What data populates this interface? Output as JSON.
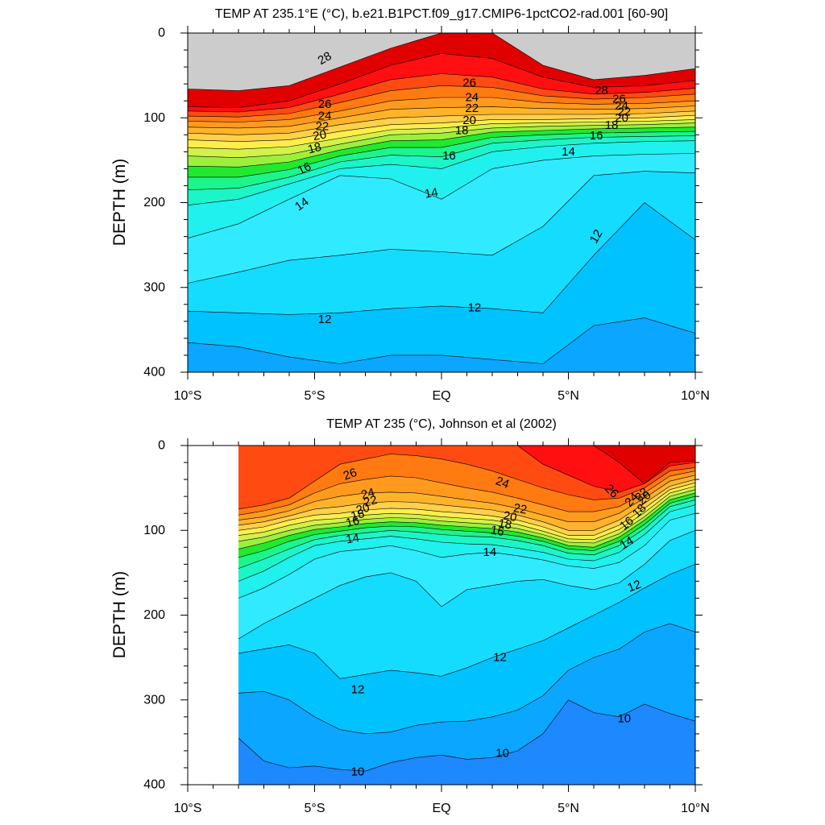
{
  "colors": {
    "t28": "#e00000",
    "t27": "#ff0f0f",
    "t26": "#ff4a12",
    "t25": "#ff7a10",
    "t24": "#ff9a1e",
    "t23": "#ffb32a",
    "t22": "#ffd04a",
    "t21": "#ffee4a",
    "t20": "#d4f04a",
    "t19": "#9cf03c",
    "t18": "#22e830",
    "t17": "#1cf58a",
    "t16": "#1cf5c8",
    "t15": "#20f0ee",
    "t14": "#30ebff",
    "t13": "#14dcff",
    "t12": "#00c2ff",
    "t11": "#0aa6ff",
    "t10": "#1e88ff",
    "t9": "#2664ee"
  },
  "chart_data": [
    {
      "type": "contour",
      "title": "TEMP AT 235.1°E (°C), b.e21.B1PCT.f09_g17.CMIP6-1pctCO2-rad.001 [60-90]",
      "xlabel": "",
      "ylabel": "DEPTH (m)",
      "xlim": [
        -10,
        10
      ],
      "ylim": [
        0,
        400
      ],
      "y_inverted": true,
      "x_ticks": [
        -10,
        -5,
        0,
        5,
        10
      ],
      "x_tick_labels": [
        "10°S",
        "5°S",
        "EQ",
        "5°N",
        "10°N"
      ],
      "y_ticks": [
        0,
        100,
        200,
        300,
        400
      ],
      "y_tick_labels": [
        "0",
        "100",
        "200",
        "300",
        "400"
      ],
      "data_x_range": [
        -10,
        10
      ],
      "x": [
        -10,
        -8,
        -6,
        -4,
        -2,
        0,
        2,
        4,
        6,
        8,
        10
      ],
      "isotherms": [
        {
          "level": 28,
          "depth": [
            66,
            68,
            62,
            40,
            18,
            0,
            0,
            38,
            55,
            50,
            42
          ]
        },
        {
          "level": 27,
          "depth": [
            87,
            88,
            80,
            60,
            38,
            24,
            30,
            52,
            64,
            62,
            56
          ]
        },
        {
          "level": 26,
          "depth": [
            92,
            93,
            88,
            72,
            55,
            48,
            52,
            66,
            72,
            70,
            65
          ]
        },
        {
          "level": 25,
          "depth": [
            98,
            99,
            95,
            82,
            68,
            62,
            64,
            74,
            78,
            76,
            72
          ]
        },
        {
          "level": 24,
          "depth": [
            104,
            105,
            102,
            92,
            80,
            76,
            76,
            82,
            84,
            83,
            80
          ]
        },
        {
          "level": 23,
          "depth": [
            111,
            112,
            110,
            100,
            90,
            88,
            87,
            89,
            90,
            89,
            86
          ]
        },
        {
          "level": 22,
          "depth": [
            118,
            120,
            118,
            108,
            100,
            98,
            96,
            96,
            96,
            95,
            92
          ]
        },
        {
          "level": 21,
          "depth": [
            126,
            128,
            126,
            116,
            108,
            106,
            102,
            102,
            101,
            100,
            97
          ]
        },
        {
          "level": 20,
          "depth": [
            135,
            137,
            134,
            124,
            114,
            112,
            107,
            106,
            105,
            104,
            102
          ]
        },
        {
          "level": 19,
          "depth": [
            145,
            147,
            143,
            131,
            120,
            118,
            112,
            110,
            109,
            108,
            106
          ]
        },
        {
          "level": 18,
          "depth": [
            157,
            158,
            152,
            138,
            127,
            126,
            117,
            115,
            113,
            112,
            111
          ]
        },
        {
          "level": 17,
          "depth": [
            170,
            170,
            161,
            145,
            135,
            135,
            123,
            120,
            118,
            117,
            116
          ]
        },
        {
          "level": 16,
          "depth": [
            185,
            183,
            170,
            152,
            144,
            146,
            130,
            126,
            123,
            122,
            121
          ]
        },
        {
          "level": 15,
          "depth": [
            203,
            196,
            178,
            160,
            155,
            160,
            140,
            134,
            130,
            128,
            127
          ]
        },
        {
          "level": 14,
          "depth": [
            242,
            225,
            196,
            168,
            172,
            196,
            160,
            150,
            145,
            143,
            142
          ]
        },
        {
          "level": 13,
          "depth": [
            295,
            282,
            268,
            262,
            255,
            258,
            262,
            228,
            168,
            163,
            165
          ]
        },
        {
          "level": 12,
          "depth": [
            328,
            330,
            332,
            330,
            325,
            322,
            325,
            330,
            262,
            200,
            244
          ]
        },
        {
          "level": 11,
          "depth": [
            365,
            370,
            382,
            390,
            380,
            380,
            385,
            390,
            345,
            336,
            354
          ]
        }
      ],
      "contour_labels": [
        {
          "text": "28",
          "x": -4.6,
          "y": 30,
          "angle": -30
        },
        {
          "text": "26",
          "x": -4.6,
          "y": 84,
          "angle": 0
        },
        {
          "text": "24",
          "x": -4.6,
          "y": 98,
          "angle": 0
        },
        {
          "text": "22",
          "x": -4.7,
          "y": 110,
          "angle": 0
        },
        {
          "text": "20",
          "x": -4.8,
          "y": 121,
          "angle": -10
        },
        {
          "text": "18",
          "x": -5.0,
          "y": 136,
          "angle": -15
        },
        {
          "text": "16",
          "x": -5.4,
          "y": 160,
          "angle": -25
        },
        {
          "text": "14",
          "x": -5.5,
          "y": 202,
          "angle": -35
        },
        {
          "text": "26",
          "x": 1.1,
          "y": 59,
          "angle": 0
        },
        {
          "text": "24",
          "x": 1.2,
          "y": 76,
          "angle": 0
        },
        {
          "text": "22",
          "x": 1.2,
          "y": 89,
          "angle": 0
        },
        {
          "text": "20",
          "x": 1.1,
          "y": 103,
          "angle": 0
        },
        {
          "text": "18",
          "x": 0.8,
          "y": 115,
          "angle": 0
        },
        {
          "text": "16",
          "x": 0.3,
          "y": 145,
          "angle": 0
        },
        {
          "text": "14",
          "x": -0.4,
          "y": 189,
          "angle": -10
        },
        {
          "text": "28",
          "x": 6.3,
          "y": 68,
          "angle": 0
        },
        {
          "text": "26",
          "x": 7.0,
          "y": 78,
          "angle": 0
        },
        {
          "text": "24",
          "x": 7.1,
          "y": 86,
          "angle": 0
        },
        {
          "text": "22",
          "x": 7.2,
          "y": 93,
          "angle": 0
        },
        {
          "text": "20",
          "x": 7.1,
          "y": 100,
          "angle": 0
        },
        {
          "text": "18",
          "x": 6.7,
          "y": 109,
          "angle": 0
        },
        {
          "text": "16",
          "x": 6.1,
          "y": 121,
          "angle": 0
        },
        {
          "text": "14",
          "x": 5.0,
          "y": 140,
          "angle": 0
        },
        {
          "text": "12",
          "x": 6.1,
          "y": 240,
          "angle": -60
        },
        {
          "text": "12",
          "x": 1.3,
          "y": 324,
          "angle": 0
        },
        {
          "text": "12",
          "x": -4.6,
          "y": 338,
          "angle": 0
        }
      ]
    },
    {
      "type": "contour",
      "title": "TEMP AT 235 (°C), Johnson et al (2002)",
      "xlabel": "",
      "ylabel": "DEPTH (m)",
      "xlim": [
        -10,
        10
      ],
      "ylim": [
        0,
        400
      ],
      "y_inverted": true,
      "x_ticks": [
        -10,
        -5,
        0,
        5,
        10
      ],
      "x_tick_labels": [
        "10°S",
        "5°S",
        "EQ",
        "5°N",
        "10°N"
      ],
      "y_ticks": [
        0,
        100,
        200,
        300,
        400
      ],
      "y_tick_labels": [
        "0",
        "100",
        "200",
        "300",
        "400"
      ],
      "data_x_range": [
        -8,
        10
      ],
      "x": [
        -8,
        -7,
        -6,
        -5,
        -4,
        -3,
        -2,
        -1,
        0,
        1,
        2,
        3,
        4,
        5,
        6,
        7,
        8,
        9,
        10
      ],
      "isotherms": [
        {
          "level": 27,
          "depth": [
            0,
            0,
            0,
            0,
            0,
            0,
            0,
            0,
            0,
            0,
            0,
            0,
            0,
            0,
            0,
            20,
            45,
            20,
            18
          ]
        },
        {
          "level": 26,
          "depth": [
            0,
            0,
            0,
            0,
            0,
            0,
            0,
            0,
            0,
            0,
            0,
            0,
            22,
            35,
            48,
            55,
            45,
            24,
            20
          ]
        },
        {
          "level": 25,
          "depth": [
            75,
            70,
            62,
            42,
            22,
            16,
            10,
            12,
            16,
            22,
            30,
            40,
            50,
            58,
            64,
            62,
            50,
            30,
            26
          ]
        },
        {
          "level": 24,
          "depth": [
            82,
            77,
            70,
            56,
            45,
            40,
            36,
            38,
            44,
            50,
            55,
            62,
            70,
            78,
            78,
            72,
            56,
            36,
            30
          ]
        },
        {
          "level": 23,
          "depth": [
            88,
            84,
            77,
            66,
            60,
            56,
            55,
            56,
            60,
            64,
            68,
            74,
            82,
            90,
            90,
            80,
            62,
            42,
            35
          ]
        },
        {
          "level": 22,
          "depth": [
            94,
            90,
            83,
            75,
            72,
            68,
            66,
            67,
            70,
            73,
            76,
            82,
            90,
            100,
            100,
            88,
            68,
            48,
            40
          ]
        },
        {
          "level": 21,
          "depth": [
            100,
            96,
            88,
            82,
            80,
            76,
            74,
            75,
            78,
            80,
            83,
            88,
            96,
            106,
            106,
            94,
            74,
            52,
            44
          ]
        },
        {
          "level": 20,
          "depth": [
            106,
            102,
            94,
            88,
            86,
            82,
            80,
            81,
            84,
            86,
            88,
            93,
            101,
            110,
            111,
            99,
            79,
            56,
            48
          ]
        },
        {
          "level": 19,
          "depth": [
            113,
            108,
            100,
            94,
            91,
            87,
            85,
            86,
            89,
            91,
            93,
            98,
            105,
            114,
            115,
            104,
            84,
            60,
            52
          ]
        },
        {
          "level": 18,
          "depth": [
            122,
            115,
            106,
            99,
            96,
            92,
            90,
            91,
            94,
            96,
            98,
            102,
            109,
            118,
            120,
            108,
            88,
            64,
            56
          ]
        },
        {
          "level": 17,
          "depth": [
            132,
            124,
            113,
            105,
            101,
            97,
            95,
            96,
            99,
            101,
            103,
            107,
            113,
            122,
            124,
            113,
            93,
            68,
            60
          ]
        },
        {
          "level": 16,
          "depth": [
            145,
            134,
            122,
            111,
            106,
            103,
            100,
            102,
            105,
            107,
            108,
            112,
            118,
            127,
            129,
            118,
            98,
            72,
            64
          ]
        },
        {
          "level": 15,
          "depth": [
            160,
            148,
            132,
            118,
            113,
            110,
            107,
            110,
            114,
            116,
            117,
            121,
            126,
            134,
            136,
            126,
            105,
            78,
            70
          ]
        },
        {
          "level": 14,
          "depth": [
            180,
            168,
            152,
            134,
            125,
            122,
            118,
            124,
            132,
            128,
            126,
            130,
            135,
            142,
            145,
            138,
            118,
            88,
            80
          ]
        },
        {
          "level": 13,
          "depth": [
            228,
            210,
            195,
            180,
            165,
            155,
            150,
            160,
            190,
            170,
            165,
            160,
            158,
            165,
            170,
            162,
            140,
            112,
            100
          ]
        },
        {
          "level": 12,
          "depth": [
            245,
            240,
            235,
            245,
            275,
            270,
            265,
            268,
            272,
            262,
            250,
            240,
            230,
            215,
            200,
            185,
            168,
            152,
            140
          ]
        },
        {
          "level": 11,
          "depth": [
            292,
            290,
            300,
            320,
            335,
            340,
            338,
            330,
            326,
            325,
            320,
            312,
            295,
            265,
            250,
            240,
            220,
            210,
            220
          ]
        },
        {
          "level": 10,
          "depth": [
            345,
            372,
            380,
            378,
            382,
            384,
            374,
            368,
            365,
            370,
            368,
            360,
            340,
            300,
            315,
            320,
            305,
            316,
            325
          ]
        }
      ],
      "contour_labels": [
        {
          "text": "26",
          "x": -3.6,
          "y": 34,
          "angle": -20
        },
        {
          "text": "24",
          "x": -2.9,
          "y": 57,
          "angle": -15
        },
        {
          "text": "22",
          "x": -2.8,
          "y": 66,
          "angle": -15
        },
        {
          "text": "20",
          "x": -3.1,
          "y": 75,
          "angle": -15
        },
        {
          "text": "18",
          "x": -3.3,
          "y": 82,
          "angle": -15
        },
        {
          "text": "16",
          "x": -3.5,
          "y": 90,
          "angle": -15
        },
        {
          "text": "14",
          "x": -3.5,
          "y": 110,
          "angle": -10
        },
        {
          "text": "24",
          "x": 2.4,
          "y": 44,
          "angle": 20
        },
        {
          "text": "22",
          "x": 3.1,
          "y": 75,
          "angle": 10
        },
        {
          "text": "20",
          "x": 2.7,
          "y": 84,
          "angle": 10
        },
        {
          "text": "18",
          "x": 2.5,
          "y": 93,
          "angle": 10
        },
        {
          "text": "16",
          "x": 2.2,
          "y": 101,
          "angle": 10
        },
        {
          "text": "14",
          "x": 1.9,
          "y": 126,
          "angle": 0
        },
        {
          "text": "26",
          "x": 6.7,
          "y": 54,
          "angle": 45
        },
        {
          "text": "24",
          "x": 7.5,
          "y": 64,
          "angle": -45
        },
        {
          "text": "22",
          "x": 7.9,
          "y": 58,
          "angle": -45
        },
        {
          "text": "20",
          "x": 8.0,
          "y": 62,
          "angle": -45
        },
        {
          "text": "18",
          "x": 7.8,
          "y": 77,
          "angle": -45
        },
        {
          "text": "16",
          "x": 7.3,
          "y": 92,
          "angle": -40
        },
        {
          "text": "14",
          "x": 7.3,
          "y": 115,
          "angle": -30
        },
        {
          "text": "12",
          "x": 7.6,
          "y": 166,
          "angle": -20
        },
        {
          "text": "12",
          "x": 2.3,
          "y": 250,
          "angle": 0
        },
        {
          "text": "12",
          "x": -3.3,
          "y": 288,
          "angle": 0
        },
        {
          "text": "10",
          "x": 7.2,
          "y": 322,
          "angle": 0
        },
        {
          "text": "10",
          "x": 2.4,
          "y": 363,
          "angle": 0
        },
        {
          "text": "10",
          "x": -3.3,
          "y": 385,
          "angle": 0
        }
      ]
    }
  ]
}
